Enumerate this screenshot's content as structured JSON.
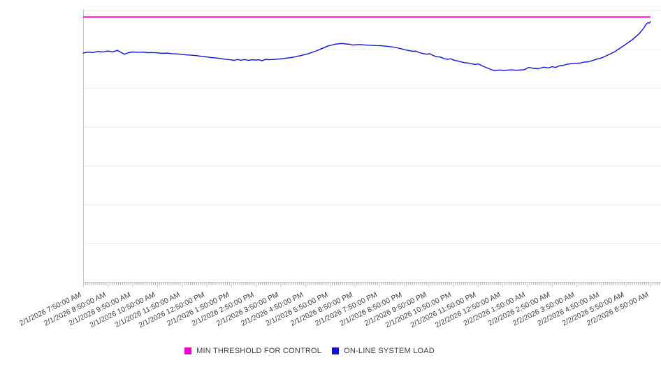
{
  "chart_data": {
    "type": "line",
    "title": "",
    "xlabel": "",
    "ylabel": "",
    "grid": "horizontal",
    "legend_position": "bottom-center",
    "x_axis": {
      "tick_labels": [
        "2/1/2026 7:50:00 AM",
        "2/1/2026 8:50:00 AM",
        "2/1/2026 9:50:00 AM",
        "2/1/2026 10:50:00 AM",
        "2/1/2026 11:50:00 AM",
        "2/1/2026 12:50:00 PM",
        "2/1/2026 1:50:00 PM",
        "2/1/2026 2:50:00 PM",
        "2/1/2026 3:50:00 PM",
        "2/1/2026 4:50:00 PM",
        "2/1/2026 5:50:00 PM",
        "2/1/2026 6:50:00 PM",
        "2/1/2026 7:50:00 PM",
        "2/1/2026 8:50:00 PM",
        "2/1/2026 9:50:00 PM",
        "2/1/2026 10:50:00 PM",
        "2/1/2026 11:50:00 PM",
        "2/2/2026 12:50:00 AM",
        "2/2/2026 1:50:00 AM",
        "2/2/2026 2:50:00 AM",
        "2/2/2026 3:50:00 AM",
        "2/2/2026 4:50:00 AM",
        "2/2/2026 5:50:00 AM",
        "2/2/2026 6:50:00 AM"
      ],
      "label_angle_deg": -26,
      "minor_ticks_per_hour": 12,
      "range_hours": [
        0,
        23
      ]
    },
    "y_axis": {
      "ylim": [
        0,
        7
      ],
      "tick_labels": [],
      "gridline_interval": 1
    },
    "series": [
      {
        "name": "MIN THRESHOLD FOR CONTROL",
        "type": "threshold-line",
        "color": "#F003CE",
        "value": 6.84
      },
      {
        "name": "ON-LINE SYSTEM LOAD",
        "type": "line",
        "color": "#1414CC",
        "points": [
          [
            0,
            5.911
          ],
          [
            0.2,
            5.934
          ],
          [
            0.4,
            5.924
          ],
          [
            0.6,
            5.953
          ],
          [
            0.79,
            5.938
          ],
          [
            0.99,
            5.963
          ],
          [
            1.19,
            5.942
          ],
          [
            1.39,
            5.978
          ],
          [
            1.53,
            5.929
          ],
          [
            1.67,
            5.881
          ],
          [
            1.84,
            5.92
          ],
          [
            2.01,
            5.938
          ],
          [
            2.21,
            5.931
          ],
          [
            2.41,
            5.934
          ],
          [
            2.61,
            5.92
          ],
          [
            2.8,
            5.924
          ],
          [
            3,
            5.916
          ],
          [
            3.2,
            5.902
          ],
          [
            3.4,
            5.909
          ],
          [
            3.6,
            5.895
          ],
          [
            3.8,
            5.888
          ],
          [
            3.99,
            5.877
          ],
          [
            4.19,
            5.863
          ],
          [
            4.39,
            5.856
          ],
          [
            4.59,
            5.845
          ],
          [
            4.79,
            5.827
          ],
          [
            4.99,
            5.813
          ],
          [
            5.18,
            5.796
          ],
          [
            5.38,
            5.784
          ],
          [
            5.58,
            5.769
          ],
          [
            5.78,
            5.748
          ],
          [
            5.98,
            5.737
          ],
          [
            6.12,
            5.723
          ],
          [
            6.26,
            5.744
          ],
          [
            6.4,
            5.726
          ],
          [
            6.54,
            5.744
          ],
          [
            6.69,
            5.723
          ],
          [
            6.83,
            5.737
          ],
          [
            7,
            5.732
          ],
          [
            7.14,
            5.737
          ],
          [
            7.25,
            5.71
          ],
          [
            7.39,
            5.75
          ],
          [
            7.53,
            5.741
          ],
          [
            7.68,
            5.744
          ],
          [
            7.82,
            5.752
          ],
          [
            7.96,
            5.759
          ],
          [
            8.1,
            5.769
          ],
          [
            8.24,
            5.78
          ],
          [
            8.38,
            5.791
          ],
          [
            8.53,
            5.804
          ],
          [
            8.67,
            5.827
          ],
          [
            8.81,
            5.843
          ],
          [
            8.98,
            5.87
          ],
          [
            9.15,
            5.899
          ],
          [
            9.32,
            5.938
          ],
          [
            9.49,
            5.974
          ],
          [
            9.66,
            6.023
          ],
          [
            9.8,
            6.059
          ],
          [
            9.94,
            6.097
          ],
          [
            10.08,
            6.118
          ],
          [
            10.23,
            6.14
          ],
          [
            10.37,
            6.151
          ],
          [
            10.51,
            6.158
          ],
          [
            10.65,
            6.145
          ],
          [
            10.79,
            6.14
          ],
          [
            10.93,
            6.118
          ],
          [
            11.08,
            6.125
          ],
          [
            11.22,
            6.131
          ],
          [
            11.36,
            6.122
          ],
          [
            11.53,
            6.115
          ],
          [
            11.7,
            6.111
          ],
          [
            11.87,
            6.104
          ],
          [
            12.04,
            6.1
          ],
          [
            12.21,
            6.093
          ],
          [
            12.38,
            6.079
          ],
          [
            12.55,
            6.068
          ],
          [
            12.72,
            6.046
          ],
          [
            12.89,
            6.023
          ],
          [
            13.06,
            5.992
          ],
          [
            13.23,
            5.971
          ],
          [
            13.37,
            5.956
          ],
          [
            13.48,
            5.963
          ],
          [
            13.63,
            5.92
          ],
          [
            13.8,
            5.895
          ],
          [
            13.94,
            5.881
          ],
          [
            14.05,
            5.893
          ],
          [
            14.19,
            5.848
          ],
          [
            14.33,
            5.813
          ],
          [
            14.48,
            5.809
          ],
          [
            14.62,
            5.771
          ],
          [
            14.76,
            5.751
          ],
          [
            14.9,
            5.762
          ],
          [
            15.04,
            5.726
          ],
          [
            15.18,
            5.708
          ],
          [
            15.33,
            5.681
          ],
          [
            15.47,
            5.661
          ],
          [
            15.61,
            5.654
          ],
          [
            15.75,
            5.632
          ],
          [
            15.89,
            5.618
          ],
          [
            16.03,
            5.629
          ],
          [
            16.18,
            5.578
          ],
          [
            16.32,
            5.542
          ],
          [
            16.46,
            5.506
          ],
          [
            16.6,
            5.47
          ],
          [
            16.74,
            5.461
          ],
          [
            16.88,
            5.474
          ],
          [
            17.03,
            5.463
          ],
          [
            17.2,
            5.47
          ],
          [
            17.37,
            5.477
          ],
          [
            17.54,
            5.467
          ],
          [
            17.71,
            5.474
          ],
          [
            17.88,
            5.481
          ],
          [
            18.07,
            5.542
          ],
          [
            18.24,
            5.515
          ],
          [
            18.44,
            5.506
          ],
          [
            18.67,
            5.546
          ],
          [
            18.87,
            5.528
          ],
          [
            19.01,
            5.56
          ],
          [
            19.15,
            5.538
          ],
          [
            19.29,
            5.578
          ],
          [
            19.46,
            5.596
          ],
          [
            19.63,
            5.623
          ],
          [
            19.8,
            5.636
          ],
          [
            19.97,
            5.646
          ],
          [
            20.14,
            5.65
          ],
          [
            20.31,
            5.677
          ],
          [
            20.48,
            5.686
          ],
          [
            20.65,
            5.717
          ],
          [
            20.82,
            5.754
          ],
          [
            20.99,
            5.78
          ],
          [
            21.13,
            5.816
          ],
          [
            21.27,
            5.859
          ],
          [
            21.42,
            5.902
          ],
          [
            21.56,
            5.949
          ],
          [
            21.7,
            6.01
          ],
          [
            21.84,
            6.068
          ],
          [
            21.98,
            6.129
          ],
          [
            22.12,
            6.19
          ],
          [
            22.27,
            6.259
          ],
          [
            22.41,
            6.338
          ],
          [
            22.52,
            6.397
          ],
          [
            22.63,
            6.478
          ],
          [
            22.72,
            6.55
          ],
          [
            22.78,
            6.613
          ],
          [
            22.83,
            6.658
          ],
          [
            22.89,
            6.691
          ],
          [
            22.95,
            6.683
          ],
          [
            23,
            6.721
          ]
        ]
      }
    ],
    "colors": {
      "gridline": "#EDEDED",
      "top_border": "#E3E3E3",
      "axis": "#C8C8C8",
      "tick": "#ACACAC",
      "label_text": "#3E3E3E"
    }
  },
  "legend": {
    "items": [
      {
        "label": "MIN THRESHOLD FOR CONTROL",
        "color": "#F003CE"
      },
      {
        "label": "ON-LINE SYSTEM LOAD",
        "color": "#1414CC"
      }
    ]
  }
}
